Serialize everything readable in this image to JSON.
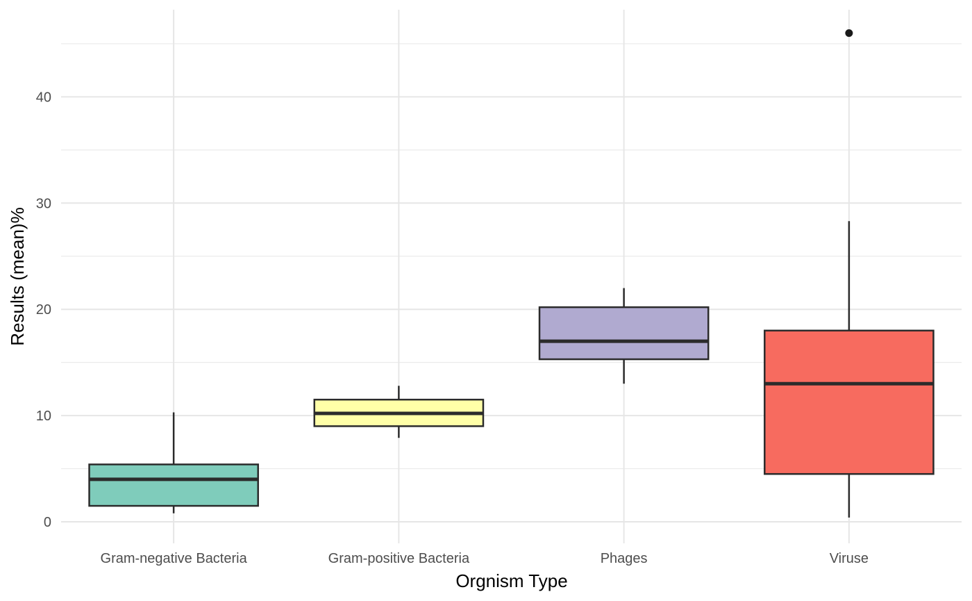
{
  "chart_data": {
    "type": "boxplot",
    "title": "",
    "xlabel": "Orgnism Type",
    "ylabel": "Results (mean)%",
    "ylim": [
      -2,
      48
    ],
    "y_ticks": [
      0,
      10,
      20,
      30,
      40
    ],
    "y_tick_labels": [
      "0",
      "10",
      "20",
      "30",
      "40"
    ],
    "grid": true,
    "legend": "none",
    "categories": [
      "Gram-negative Bacteria",
      "Gram-positive Bacteria",
      "Phages",
      "Viruse"
    ],
    "boxes": [
      {
        "category": "Gram-negative Bacteria",
        "whisker_low": 0.8,
        "q1": 1.5,
        "median": 4.0,
        "q3": 5.4,
        "whisker_high": 10.3,
        "outliers": [],
        "color": "#7fccbb"
      },
      {
        "category": "Gram-positive Bacteria",
        "whisker_low": 7.9,
        "q1": 9.0,
        "median": 10.2,
        "q3": 11.5,
        "whisker_high": 12.8,
        "outliers": [],
        "color": "#ffffa8"
      },
      {
        "category": "Phages",
        "whisker_low": 13.0,
        "q1": 15.3,
        "median": 17.0,
        "q3": 20.2,
        "whisker_high": 22.0,
        "outliers": [],
        "color": "#b0aad0"
      },
      {
        "category": "Viruse",
        "whisker_low": 0.4,
        "q1": 4.5,
        "median": 13.0,
        "q3": 18.0,
        "whisker_high": 28.3,
        "outliers": [
          46.0
        ],
        "color": "#f76b5f"
      }
    ]
  }
}
